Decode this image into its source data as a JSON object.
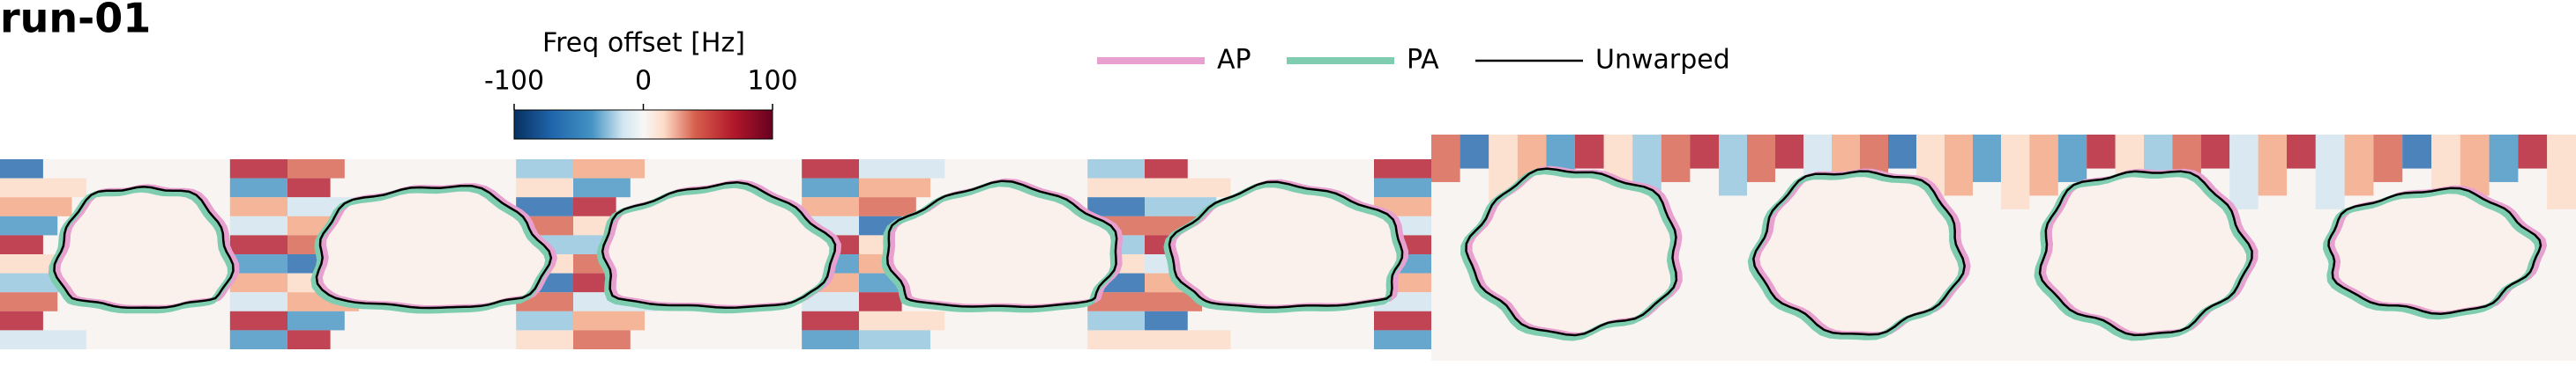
{
  "title": "run-01",
  "colorbar": {
    "label": "Freq offset [Hz]",
    "range": [
      -100,
      100
    ],
    "ticks": [
      -100,
      0,
      100
    ]
  },
  "legend": [
    {
      "name": "AP",
      "color": "#e7a0cf"
    },
    {
      "name": "PA",
      "color": "#7fcdb0"
    },
    {
      "name": "Unwarped",
      "color": "#000000"
    }
  ]
}
